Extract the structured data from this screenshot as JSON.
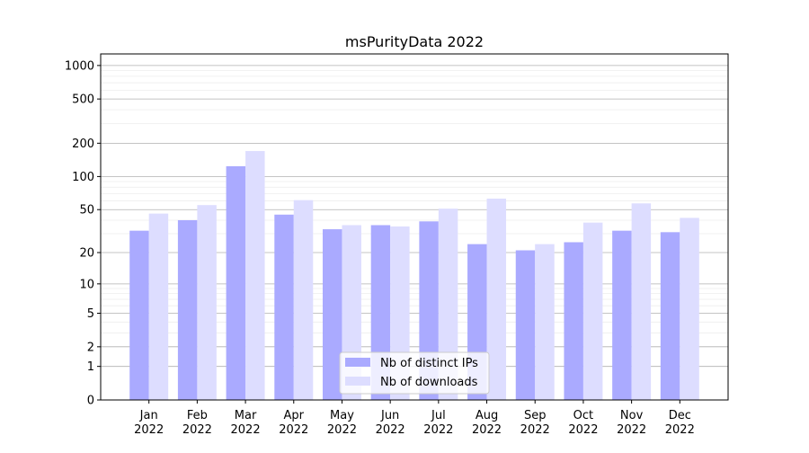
{
  "chart_data": {
    "type": "bar",
    "title": "msPurityData 2022",
    "xlabel": "",
    "ylabel": "",
    "y_scale": "log10(y+1)",
    "ylim": [
      0,
      1270
    ],
    "y_ticks": [
      0,
      1,
      2,
      5,
      10,
      20,
      50,
      100,
      200,
      500,
      1000
    ],
    "grid": true,
    "legend_position": "lower center",
    "categories": [
      "Jan\n2022",
      "Feb\n2022",
      "Mar\n2022",
      "Apr\n2022",
      "May\n2022",
      "Jun\n2022",
      "Jul\n2022",
      "Aug\n2022",
      "Sep\n2022",
      "Oct\n2022",
      "Nov\n2022",
      "Dec\n2022"
    ],
    "series": [
      {
        "name": "Nb of distinct IPs",
        "color": "#aaaaff",
        "values": [
          32,
          40,
          124,
          45,
          33,
          36,
          39,
          24,
          21,
          25,
          32,
          31
        ]
      },
      {
        "name": "Nb of downloads",
        "color": "#ddddff",
        "values": [
          46,
          55,
          170,
          61,
          36,
          35,
          51,
          63,
          24,
          38,
          57,
          42
        ]
      }
    ]
  }
}
